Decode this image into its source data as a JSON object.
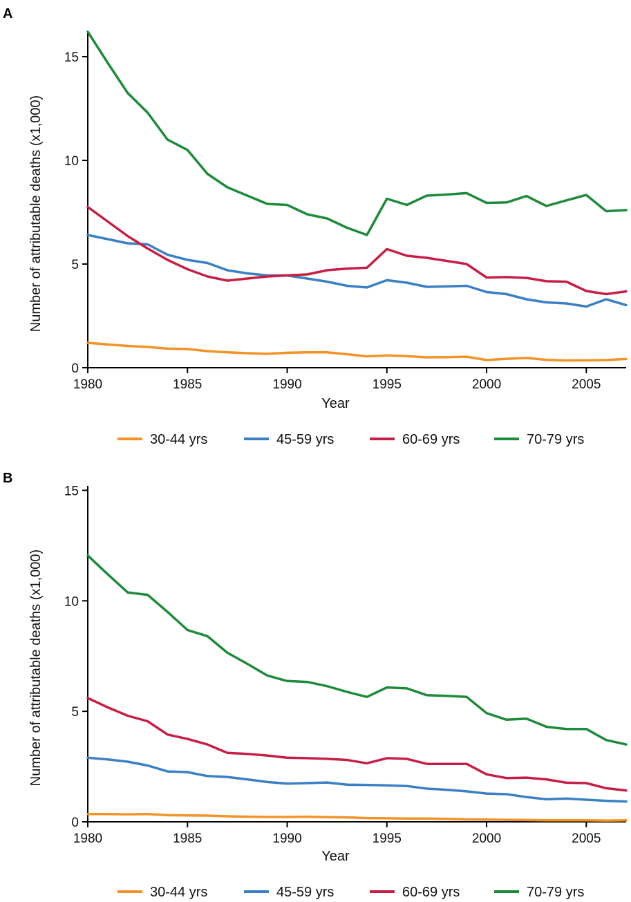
{
  "colors": {
    "30-44": "#f39227",
    "45-59": "#3b7fc4",
    "60-69": "#c51f45",
    "70-79": "#1f8a3c"
  },
  "chart_data": [
    {
      "panel": "A",
      "type": "line",
      "xlabel": "Year",
      "ylabel": "Number of attributable deaths (x1,000)",
      "xlim": [
        1980,
        2007
      ],
      "ylim": [
        0,
        16.2
      ],
      "xticks": [
        1980,
        1985,
        1990,
        1995,
        2000,
        2005
      ],
      "yticks": [
        0,
        5,
        10,
        15
      ],
      "legend_position": "bottom",
      "x": [
        1980,
        1981,
        1982,
        1983,
        1984,
        1985,
        1986,
        1987,
        1988,
        1989,
        1990,
        1991,
        1992,
        1993,
        1994,
        1995,
        1996,
        1997,
        1998,
        1999,
        2000,
        2001,
        2002,
        2003,
        2004,
        2005,
        2006,
        2007
      ],
      "series": [
        {
          "name": "30-44 yrs",
          "key": "30-44",
          "values": [
            1.2,
            1.12,
            1.05,
            1.0,
            0.92,
            0.9,
            0.8,
            0.74,
            0.7,
            0.67,
            0.72,
            0.74,
            0.74,
            0.65,
            0.55,
            0.59,
            0.56,
            0.5,
            0.51,
            0.53,
            0.37,
            0.43,
            0.47,
            0.38,
            0.35,
            0.36,
            0.37,
            0.42
          ]
        },
        {
          "name": "45-59 yrs",
          "key": "45-59",
          "values": [
            6.4,
            6.2,
            6.0,
            5.95,
            5.45,
            5.2,
            5.05,
            4.7,
            4.55,
            4.45,
            4.45,
            4.3,
            4.15,
            3.95,
            3.87,
            4.22,
            4.1,
            3.9,
            3.92,
            3.95,
            3.65,
            3.55,
            3.3,
            3.15,
            3.1,
            2.95,
            3.3,
            3.02
          ]
        },
        {
          "name": "60-69 yrs",
          "key": "60-69",
          "values": [
            7.75,
            7.05,
            6.35,
            5.75,
            5.2,
            4.75,
            4.4,
            4.2,
            4.3,
            4.4,
            4.45,
            4.5,
            4.7,
            4.78,
            4.82,
            5.72,
            5.4,
            5.3,
            5.15,
            5.0,
            4.35,
            4.37,
            4.33,
            4.17,
            4.15,
            3.7,
            3.55,
            3.68
          ]
        },
        {
          "name": "70-79 yrs",
          "key": "70-79",
          "values": [
            16.2,
            14.7,
            13.25,
            12.3,
            11.0,
            10.5,
            9.35,
            8.7,
            8.3,
            7.9,
            7.85,
            7.4,
            7.2,
            6.75,
            6.4,
            8.15,
            7.85,
            8.3,
            8.35,
            8.42,
            7.95,
            7.97,
            8.28,
            7.8,
            8.07,
            8.33,
            7.55,
            7.6
          ]
        }
      ]
    },
    {
      "panel": "B",
      "type": "line",
      "xlabel": "Year",
      "ylabel": "Number of attributable deaths (x1,000)",
      "xlim": [
        1980,
        2007
      ],
      "ylim": [
        0,
        15.2
      ],
      "xticks": [
        1980,
        1985,
        1990,
        1995,
        2000,
        2005
      ],
      "yticks": [
        0,
        5,
        10,
        15
      ],
      "legend_position": "bottom",
      "x": [
        1980,
        1981,
        1982,
        1983,
        1984,
        1985,
        1986,
        1987,
        1988,
        1989,
        1990,
        1991,
        1992,
        1993,
        1994,
        1995,
        1996,
        1997,
        1998,
        1999,
        2000,
        2001,
        2002,
        2003,
        2004,
        2005,
        2006,
        2007
      ],
      "series": [
        {
          "name": "30-44 yrs",
          "key": "30-44",
          "values": [
            0.35,
            0.35,
            0.34,
            0.35,
            0.3,
            0.29,
            0.28,
            0.25,
            0.23,
            0.22,
            0.22,
            0.23,
            0.21,
            0.2,
            0.17,
            0.16,
            0.15,
            0.15,
            0.13,
            0.11,
            0.1,
            0.09,
            0.08,
            0.07,
            0.07,
            0.07,
            0.06,
            0.07
          ]
        },
        {
          "name": "45-59 yrs",
          "key": "45-59",
          "values": [
            2.9,
            2.82,
            2.72,
            2.55,
            2.28,
            2.25,
            2.07,
            2.03,
            1.92,
            1.8,
            1.73,
            1.75,
            1.78,
            1.68,
            1.67,
            1.65,
            1.62,
            1.5,
            1.45,
            1.38,
            1.28,
            1.25,
            1.12,
            1.02,
            1.05,
            1.0,
            0.95,
            0.92
          ]
        },
        {
          "name": "60-69 yrs",
          "key": "60-69",
          "values": [
            5.6,
            5.18,
            4.8,
            4.55,
            3.95,
            3.75,
            3.5,
            3.12,
            3.07,
            3.0,
            2.9,
            2.88,
            2.85,
            2.8,
            2.65,
            2.88,
            2.85,
            2.62,
            2.62,
            2.62,
            2.15,
            1.98,
            2.0,
            1.92,
            1.77,
            1.75,
            1.52,
            1.42
          ]
        },
        {
          "name": "70-79 yrs",
          "key": "70-79",
          "values": [
            12.05,
            11.2,
            10.38,
            10.27,
            9.5,
            8.68,
            8.4,
            7.65,
            7.15,
            6.62,
            6.37,
            6.33,
            6.14,
            5.88,
            5.65,
            6.08,
            6.04,
            5.73,
            5.7,
            5.65,
            4.92,
            4.62,
            4.67,
            4.3,
            4.2,
            4.2,
            3.7,
            3.5
          ]
        }
      ]
    }
  ]
}
